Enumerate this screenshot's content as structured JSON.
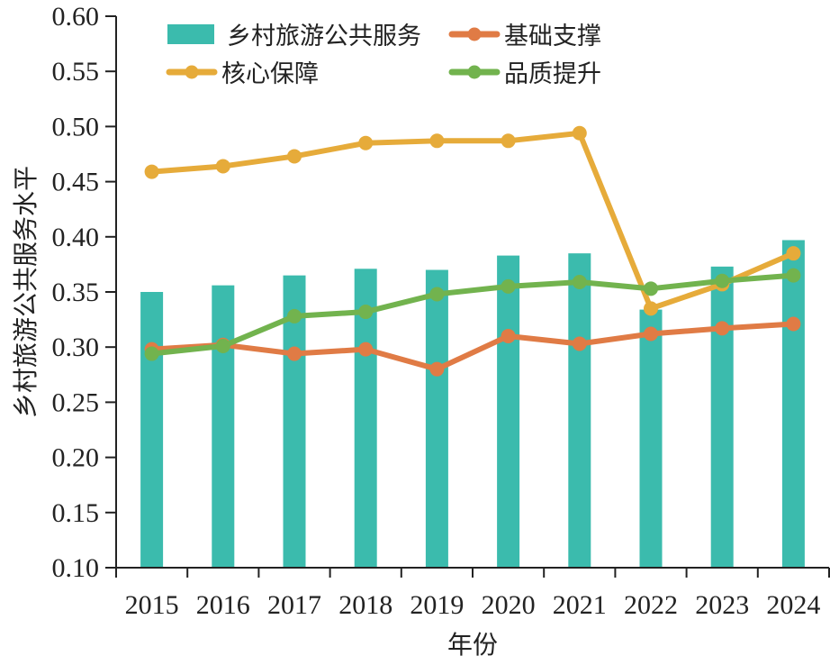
{
  "chart_data": {
    "type": "bar",
    "title": "",
    "xlabel": "年份",
    "ylabel": "乡村旅游公共服务水平",
    "ylim": [
      0.1,
      0.6
    ],
    "yticks": [
      "0.10",
      "0.15",
      "0.20",
      "0.25",
      "0.30",
      "0.35",
      "0.40",
      "0.45",
      "0.50",
      "0.55",
      "0.60"
    ],
    "categories": [
      "2015",
      "2016",
      "2017",
      "2018",
      "2019",
      "2020",
      "2021",
      "2022",
      "2023",
      "2024"
    ],
    "grid": false,
    "legend_position": "top",
    "series": [
      {
        "name": "乡村旅游公共服务",
        "type": "bar",
        "color": "#3bbbad",
        "values": [
          0.35,
          0.356,
          0.365,
          0.371,
          0.37,
          0.383,
          0.385,
          0.334,
          0.373,
          0.397
        ]
      },
      {
        "name": "基础支撑",
        "type": "line",
        "color": "#e07b45",
        "values": [
          0.298,
          0.302,
          0.294,
          0.298,
          0.28,
          0.31,
          0.303,
          0.312,
          0.317,
          0.321
        ]
      },
      {
        "name": "核心保障",
        "type": "line",
        "color": "#e6ab3a",
        "values": [
          0.459,
          0.464,
          0.473,
          0.485,
          0.487,
          0.487,
          0.494,
          0.335,
          0.357,
          0.385
        ]
      },
      {
        "name": "品质提升",
        "type": "line",
        "color": "#72b34e",
        "values": [
          0.294,
          0.301,
          0.328,
          0.332,
          0.348,
          0.355,
          0.359,
          0.353,
          0.36,
          0.365
        ]
      }
    ]
  }
}
